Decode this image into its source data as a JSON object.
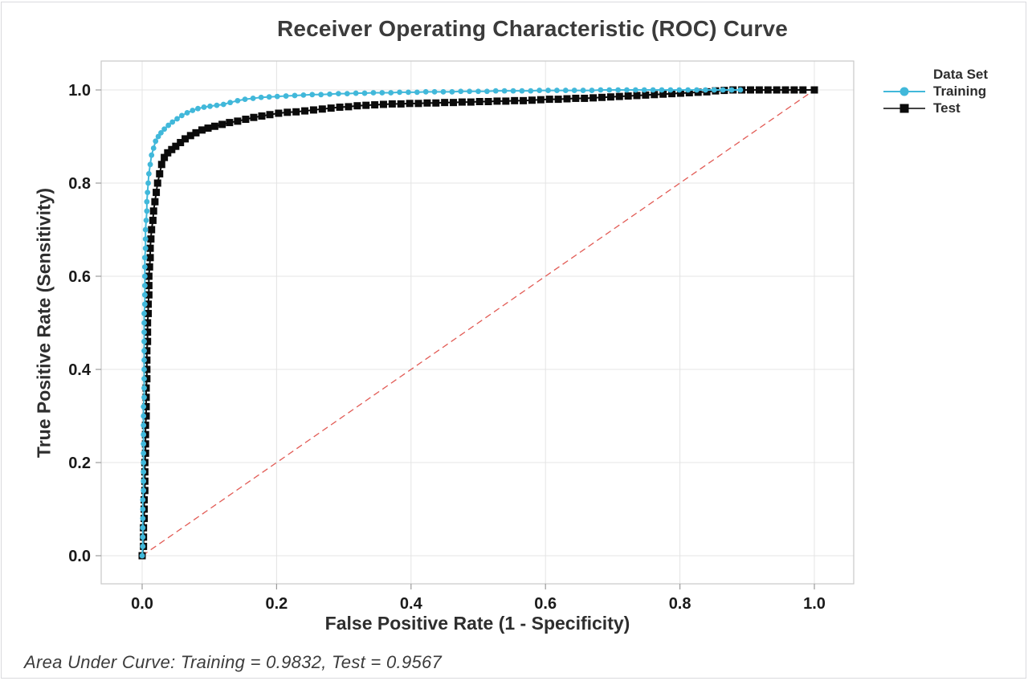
{
  "window": {
    "frame_color": "#dadade",
    "background": "#ffffff"
  },
  "chart": {
    "title": "Receiver Operating Characteristic (ROC) Curve",
    "axes": {
      "x": {
        "label": "False Positive Rate (1 - Specificity)"
      },
      "y": {
        "label": "True Positive Rate (Sensitivity)"
      }
    },
    "legend": {
      "title": "Data Set",
      "items": [
        {
          "label": "Training"
        },
        {
          "label": "Test"
        }
      ]
    },
    "footer": "Area Under Curve: Training = 0.9832, Test = 0.9567"
  },
  "chart_data": {
    "type": "line",
    "title": "Receiver Operating Characteristic (ROC) Curve",
    "xlabel": "False Positive Rate (1 - Specificity)",
    "ylabel": "True Positive Rate (Sensitivity)",
    "xlim": [
      -0.06,
      1.06
    ],
    "ylim": [
      -0.06,
      1.06
    ],
    "grid": true,
    "legend_position": "right",
    "legend_title": "Data Set",
    "x_ticks": [
      0,
      0.2,
      0.4,
      0.6,
      0.8,
      1.0
    ],
    "x_tick_labels": [
      "0.0",
      "0.2",
      "0.4",
      "0.6",
      "0.8",
      "1.0"
    ],
    "y_ticks": [
      0,
      0.2,
      0.4,
      0.6,
      0.8,
      1.0
    ],
    "y_tick_labels": [
      "0.0",
      "0.2",
      "0.4",
      "0.6",
      "0.8",
      "1.0"
    ],
    "auc": {
      "training": 0.9832,
      "test": 0.9567
    },
    "reference_line": {
      "type": "diagonal",
      "style": "dashed",
      "color": "#e25b55",
      "from": [
        0,
        0
      ],
      "to": [
        1,
        1
      ]
    },
    "style": {
      "grid": "#e4e4e4",
      "frame": "#c9c9c9",
      "tick": "#9b9b9b",
      "tick_label_color": "#1a1a1a"
    },
    "series": [
      {
        "name": "Training",
        "marker": "circle",
        "color": "#41b8da",
        "line_color": "#41b8da",
        "points": [
          [
            0,
            0
          ],
          [
            0.001,
            0.02
          ],
          [
            0.001,
            0.04
          ],
          [
            0.001,
            0.06
          ],
          [
            0.001,
            0.08
          ],
          [
            0.001,
            0.1
          ],
          [
            0.001,
            0.12
          ],
          [
            0.002,
            0.14
          ],
          [
            0.002,
            0.16
          ],
          [
            0.002,
            0.18
          ],
          [
            0.002,
            0.2
          ],
          [
            0.002,
            0.22
          ],
          [
            0.002,
            0.24
          ],
          [
            0.002,
            0.26
          ],
          [
            0.002,
            0.28
          ],
          [
            0.002,
            0.3
          ],
          [
            0.002,
            0.32
          ],
          [
            0.003,
            0.34
          ],
          [
            0.003,
            0.36
          ],
          [
            0.003,
            0.38
          ],
          [
            0.003,
            0.4
          ],
          [
            0.003,
            0.42
          ],
          [
            0.003,
            0.44
          ],
          [
            0.003,
            0.46
          ],
          [
            0.003,
            0.48
          ],
          [
            0.003,
            0.5
          ],
          [
            0.003,
            0.52
          ],
          [
            0.004,
            0.54
          ],
          [
            0.004,
            0.56
          ],
          [
            0.004,
            0.58
          ],
          [
            0.004,
            0.6
          ],
          [
            0.004,
            0.62
          ],
          [
            0.004,
            0.64
          ],
          [
            0.005,
            0.66
          ],
          [
            0.005,
            0.68
          ],
          [
            0.005,
            0.7
          ],
          [
            0.006,
            0.72
          ],
          [
            0.007,
            0.74
          ],
          [
            0.007,
            0.76
          ],
          [
            0.008,
            0.78
          ],
          [
            0.009,
            0.8
          ],
          [
            0.01,
            0.82
          ],
          [
            0.012,
            0.84
          ],
          [
            0.014,
            0.86
          ],
          [
            0.017,
            0.875
          ],
          [
            0.02,
            0.89
          ],
          [
            0.024,
            0.9
          ],
          [
            0.028,
            0.908
          ],
          [
            0.033,
            0.916
          ],
          [
            0.039,
            0.924
          ],
          [
            0.045,
            0.931
          ],
          [
            0.052,
            0.938
          ],
          [
            0.059,
            0.945
          ],
          [
            0.067,
            0.951
          ],
          [
            0.075,
            0.956
          ],
          [
            0.083,
            0.96
          ],
          [
            0.092,
            0.963
          ],
          [
            0.101,
            0.965
          ],
          [
            0.111,
            0.967
          ],
          [
            0.121,
            0.969
          ],
          [
            0.131,
            0.973
          ],
          [
            0.142,
            0.977
          ],
          [
            0.153,
            0.98
          ],
          [
            0.165,
            0.982
          ],
          [
            0.177,
            0.984
          ],
          [
            0.189,
            0.985
          ],
          [
            0.201,
            0.986
          ],
          [
            0.214,
            0.987
          ],
          [
            0.227,
            0.988
          ],
          [
            0.24,
            0.989
          ],
          [
            0.253,
            0.99
          ],
          [
            0.266,
            0.99
          ],
          [
            0.279,
            0.991
          ],
          [
            0.292,
            0.992
          ],
          [
            0.305,
            0.992
          ],
          [
            0.318,
            0.993
          ],
          [
            0.331,
            0.993
          ],
          [
            0.344,
            0.994
          ],
          [
            0.357,
            0.994
          ],
          [
            0.37,
            0.994
          ],
          [
            0.383,
            0.995
          ],
          [
            0.396,
            0.995
          ],
          [
            0.409,
            0.995
          ],
          [
            0.422,
            0.996
          ],
          [
            0.435,
            0.996
          ],
          [
            0.448,
            0.996
          ],
          [
            0.461,
            0.996
          ],
          [
            0.474,
            0.997
          ],
          [
            0.487,
            0.997
          ],
          [
            0.5,
            0.997
          ],
          [
            0.513,
            0.997
          ],
          [
            0.526,
            0.998
          ],
          [
            0.539,
            0.998
          ],
          [
            0.552,
            0.998
          ],
          [
            0.565,
            0.998
          ],
          [
            0.578,
            0.998
          ],
          [
            0.591,
            0.999
          ],
          [
            0.604,
            0.999
          ],
          [
            0.617,
            0.999
          ],
          [
            0.63,
            0.999
          ],
          [
            0.643,
            0.999
          ],
          [
            0.656,
            0.999
          ],
          [
            0.669,
            0.999
          ],
          [
            0.682,
            1.0
          ],
          [
            0.695,
            1.0
          ],
          [
            0.708,
            1.0
          ],
          [
            0.721,
            1.0
          ],
          [
            0.734,
            1.0
          ],
          [
            0.747,
            1.0
          ],
          [
            0.76,
            1.0
          ],
          [
            0.773,
            1.0
          ],
          [
            0.786,
            1.0
          ],
          [
            0.799,
            1.0
          ],
          [
            0.812,
            1.0
          ],
          [
            0.825,
            1.0
          ],
          [
            0.838,
            1.0
          ],
          [
            0.851,
            1.0
          ],
          [
            0.864,
            1.0
          ],
          [
            0.877,
            1.0
          ],
          [
            0.89,
            1.0
          ]
        ]
      },
      {
        "name": "Test",
        "marker": "square",
        "color": "#0b0b0b",
        "line_color": "#0b0b0b",
        "points": [
          [
            0,
            0
          ],
          [
            0.002,
            0.02
          ],
          [
            0.002,
            0.04
          ],
          [
            0.002,
            0.06
          ],
          [
            0.003,
            0.08
          ],
          [
            0.003,
            0.1
          ],
          [
            0.003,
            0.12
          ],
          [
            0.004,
            0.14
          ],
          [
            0.004,
            0.16
          ],
          [
            0.004,
            0.18
          ],
          [
            0.004,
            0.2
          ],
          [
            0.005,
            0.22
          ],
          [
            0.005,
            0.24
          ],
          [
            0.005,
            0.26
          ],
          [
            0.005,
            0.28
          ],
          [
            0.006,
            0.3
          ],
          [
            0.006,
            0.32
          ],
          [
            0.006,
            0.34
          ],
          [
            0.006,
            0.36
          ],
          [
            0.007,
            0.38
          ],
          [
            0.007,
            0.4
          ],
          [
            0.007,
            0.42
          ],
          [
            0.007,
            0.44
          ],
          [
            0.008,
            0.46
          ],
          [
            0.008,
            0.48
          ],
          [
            0.008,
            0.5
          ],
          [
            0.009,
            0.52
          ],
          [
            0.009,
            0.54
          ],
          [
            0.01,
            0.56
          ],
          [
            0.01,
            0.58
          ],
          [
            0.01,
            0.6
          ],
          [
            0.011,
            0.62
          ],
          [
            0.012,
            0.64
          ],
          [
            0.012,
            0.66
          ],
          [
            0.013,
            0.68
          ],
          [
            0.014,
            0.7
          ],
          [
            0.016,
            0.72
          ],
          [
            0.017,
            0.74
          ],
          [
            0.019,
            0.76
          ],
          [
            0.021,
            0.78
          ],
          [
            0.023,
            0.8
          ],
          [
            0.026,
            0.82
          ],
          [
            0.029,
            0.84
          ],
          [
            0.033,
            0.855
          ],
          [
            0.038,
            0.865
          ],
          [
            0.044,
            0.872
          ],
          [
            0.05,
            0.879
          ],
          [
            0.057,
            0.887
          ],
          [
            0.064,
            0.895
          ],
          [
            0.072,
            0.902
          ],
          [
            0.08,
            0.908
          ],
          [
            0.089,
            0.914
          ],
          [
            0.098,
            0.918
          ],
          [
            0.108,
            0.922
          ],
          [
            0.119,
            0.926
          ],
          [
            0.13,
            0.93
          ],
          [
            0.142,
            0.933
          ],
          [
            0.154,
            0.937
          ],
          [
            0.166,
            0.941
          ],
          [
            0.178,
            0.944
          ],
          [
            0.19,
            0.947
          ],
          [
            0.203,
            0.95
          ],
          [
            0.216,
            0.952
          ],
          [
            0.229,
            0.953
          ],
          [
            0.242,
            0.955
          ],
          [
            0.255,
            0.957
          ],
          [
            0.268,
            0.959
          ],
          [
            0.281,
            0.961
          ],
          [
            0.294,
            0.963
          ],
          [
            0.307,
            0.964
          ],
          [
            0.32,
            0.966
          ],
          [
            0.333,
            0.967
          ],
          [
            0.346,
            0.968
          ],
          [
            0.359,
            0.969
          ],
          [
            0.372,
            0.97
          ],
          [
            0.385,
            0.97
          ],
          [
            0.398,
            0.971
          ],
          [
            0.411,
            0.971
          ],
          [
            0.424,
            0.972
          ],
          [
            0.437,
            0.972
          ],
          [
            0.45,
            0.973
          ],
          [
            0.463,
            0.973
          ],
          [
            0.476,
            0.974
          ],
          [
            0.489,
            0.974
          ],
          [
            0.502,
            0.975
          ],
          [
            0.515,
            0.975
          ],
          [
            0.528,
            0.976
          ],
          [
            0.541,
            0.976
          ],
          [
            0.554,
            0.977
          ],
          [
            0.567,
            0.977
          ],
          [
            0.58,
            0.978
          ],
          [
            0.593,
            0.979
          ],
          [
            0.606,
            0.98
          ],
          [
            0.619,
            0.98
          ],
          [
            0.632,
            0.981
          ],
          [
            0.645,
            0.982
          ],
          [
            0.658,
            0.982
          ],
          [
            0.671,
            0.983
          ],
          [
            0.684,
            0.984
          ],
          [
            0.697,
            0.985
          ],
          [
            0.71,
            0.986
          ],
          [
            0.723,
            0.987
          ],
          [
            0.736,
            0.988
          ],
          [
            0.749,
            0.989
          ],
          [
            0.762,
            0.99
          ],
          [
            0.775,
            0.991
          ],
          [
            0.788,
            0.992
          ],
          [
            0.801,
            0.993
          ],
          [
            0.814,
            0.994
          ],
          [
            0.827,
            0.995
          ],
          [
            0.84,
            0.996
          ],
          [
            0.853,
            0.998
          ],
          [
            0.866,
            0.999
          ],
          [
            0.879,
            1.0
          ],
          [
            0.892,
            1.0
          ],
          [
            0.905,
            1.0
          ],
          [
            0.918,
            1.0
          ],
          [
            0.931,
            1.0
          ],
          [
            0.944,
            1.0
          ],
          [
            0.957,
            1.0
          ],
          [
            0.97,
            1.0
          ],
          [
            0.983,
            1.0
          ],
          [
            1.0,
            1.0
          ]
        ]
      }
    ]
  }
}
